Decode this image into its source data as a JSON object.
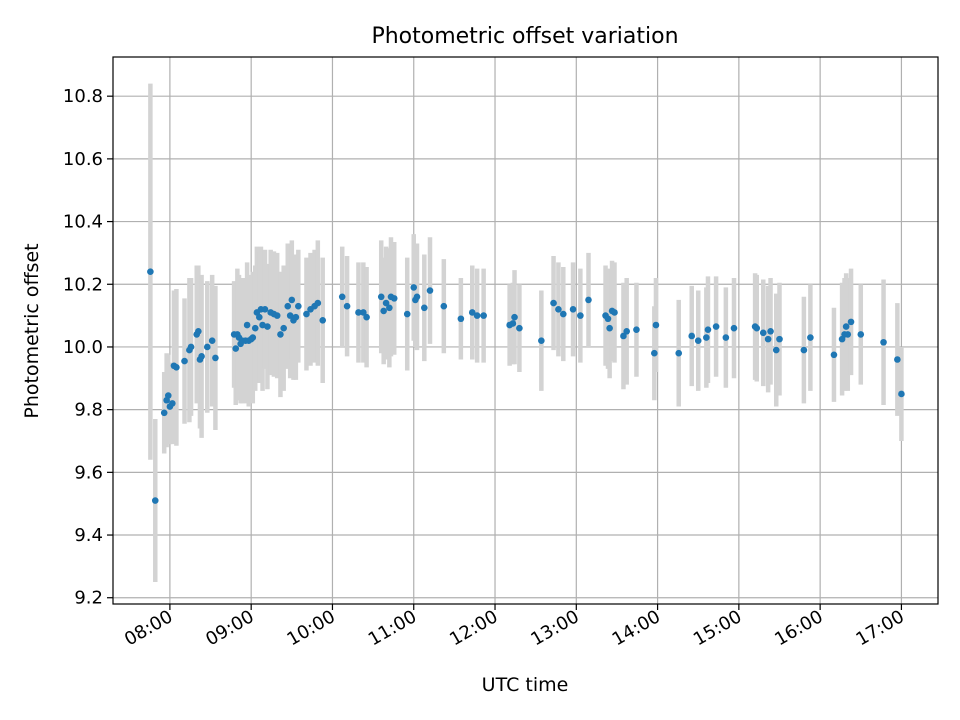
{
  "chart_data": {
    "type": "scatter",
    "title": "Photometric offset variation",
    "xlabel": "UTC time",
    "ylabel": "Photometric offset",
    "x_unit": "hours (UTC)",
    "xlim": [
      7.3,
      17.45
    ],
    "ylim": [
      9.18,
      10.925
    ],
    "x_ticks": [
      {
        "value": 8,
        "label": "08:00"
      },
      {
        "value": 9,
        "label": "09:00"
      },
      {
        "value": 10,
        "label": "10:00"
      },
      {
        "value": 11,
        "label": "11:00"
      },
      {
        "value": 12,
        "label": "12:00"
      },
      {
        "value": 13,
        "label": "13:00"
      },
      {
        "value": 14,
        "label": "14:00"
      },
      {
        "value": 15,
        "label": "15:00"
      },
      {
        "value": 16,
        "label": "16:00"
      },
      {
        "value": 17,
        "label": "17:00"
      }
    ],
    "y_ticks": [
      {
        "value": 9.2,
        "label": "9.2"
      },
      {
        "value": 9.4,
        "label": "9.4"
      },
      {
        "value": 9.6,
        "label": "9.6"
      },
      {
        "value": 9.8,
        "label": "9.8"
      },
      {
        "value": 10.0,
        "label": "10.0"
      },
      {
        "value": 10.2,
        "label": "10.2"
      },
      {
        "value": 10.4,
        "label": "10.4"
      },
      {
        "value": 10.6,
        "label": "10.6"
      },
      {
        "value": 10.8,
        "label": "10.8"
      }
    ],
    "grid": true,
    "point_color": "#1f77b4",
    "errorbar_color": "#d3d3d3",
    "points": [
      [
        7.76,
        10.24,
        0.6
      ],
      [
        7.82,
        9.51,
        0.26
      ],
      [
        7.93,
        9.79,
        0.13
      ],
      [
        7.96,
        9.83,
        0.15
      ],
      [
        7.98,
        9.845,
        0.13
      ],
      [
        8.0,
        9.81,
        0.12
      ],
      [
        8.03,
        9.82,
        0.13
      ],
      [
        8.05,
        9.94,
        0.24
      ],
      [
        8.08,
        9.935,
        0.25
      ],
      [
        8.18,
        9.955,
        0.2
      ],
      [
        8.24,
        9.99,
        0.23
      ],
      [
        8.26,
        10.0,
        0.22
      ],
      [
        8.33,
        10.04,
        0.22
      ],
      [
        8.35,
        10.05,
        0.21
      ],
      [
        8.37,
        9.96,
        0.22
      ],
      [
        8.39,
        9.97,
        0.26
      ],
      [
        8.46,
        10.0,
        0.21
      ],
      [
        8.52,
        10.02,
        0.21
      ],
      [
        8.56,
        9.965,
        0.23
      ],
      [
        8.79,
        10.04,
        0.17
      ],
      [
        8.81,
        9.995,
        0.18
      ],
      [
        8.83,
        10.04,
        0.21
      ],
      [
        8.85,
        10.03,
        0.2
      ],
      [
        8.87,
        10.01,
        0.19
      ],
      [
        8.89,
        10.02,
        0.2
      ],
      [
        8.93,
        10.02,
        0.2
      ],
      [
        8.95,
        10.07,
        0.2
      ],
      [
        8.97,
        10.02,
        0.21
      ],
      [
        9.0,
        10.025,
        0.2
      ],
      [
        9.02,
        10.03,
        0.21
      ],
      [
        9.05,
        10.06,
        0.2
      ],
      [
        9.07,
        10.11,
        0.21
      ],
      [
        9.1,
        10.095,
        0.21
      ],
      [
        9.12,
        10.12,
        0.2
      ],
      [
        9.14,
        10.07,
        0.21
      ],
      [
        9.17,
        10.12,
        0.19
      ],
      [
        9.2,
        10.065,
        0.2
      ],
      [
        9.24,
        10.11,
        0.2
      ],
      [
        9.28,
        10.105,
        0.2
      ],
      [
        9.32,
        10.1,
        0.2
      ],
      [
        9.36,
        10.04,
        0.2
      ],
      [
        9.4,
        10.06,
        0.2
      ],
      [
        9.45,
        10.13,
        0.2
      ],
      [
        9.48,
        10.1,
        0.2
      ],
      [
        9.5,
        10.15,
        0.19
      ],
      [
        9.52,
        10.085,
        0.19
      ],
      [
        9.55,
        10.095,
        0.2
      ],
      [
        9.58,
        10.13,
        0.18
      ],
      [
        9.68,
        10.105,
        0.18
      ],
      [
        9.73,
        10.12,
        0.18
      ],
      [
        9.78,
        10.13,
        0.18
      ],
      [
        9.82,
        10.14,
        0.2
      ],
      [
        9.88,
        10.085,
        0.2
      ],
      [
        10.12,
        10.16,
        0.16
      ],
      [
        10.18,
        10.13,
        0.16
      ],
      [
        10.32,
        10.11,
        0.16
      ],
      [
        10.38,
        10.11,
        0.16
      ],
      [
        10.42,
        10.095,
        0.16
      ],
      [
        10.6,
        10.16,
        0.18
      ],
      [
        10.63,
        10.115,
        0.17
      ],
      [
        10.66,
        10.14,
        0.18
      ],
      [
        10.7,
        10.125,
        0.19
      ],
      [
        10.72,
        10.16,
        0.19
      ],
      [
        10.76,
        10.155,
        0.18
      ],
      [
        10.92,
        10.105,
        0.18
      ],
      [
        11.0,
        10.19,
        0.17
      ],
      [
        11.02,
        10.15,
        0.15
      ],
      [
        11.04,
        10.16,
        0.17
      ],
      [
        11.13,
        10.125,
        0.17
      ],
      [
        11.2,
        10.18,
        0.17
      ],
      [
        11.37,
        10.13,
        0.15
      ],
      [
        11.58,
        10.09,
        0.13
      ],
      [
        11.72,
        10.11,
        0.15
      ],
      [
        11.78,
        10.1,
        0.15
      ],
      [
        11.86,
        10.1,
        0.15
      ],
      [
        12.18,
        10.07,
        0.13
      ],
      [
        12.22,
        10.075,
        0.13
      ],
      [
        12.24,
        10.095,
        0.15
      ],
      [
        12.3,
        10.06,
        0.14
      ],
      [
        12.57,
        10.02,
        0.16
      ],
      [
        12.72,
        10.14,
        0.15
      ],
      [
        12.78,
        10.12,
        0.15
      ],
      [
        12.84,
        10.105,
        0.15
      ],
      [
        12.96,
        10.12,
        0.15
      ],
      [
        13.05,
        10.1,
        0.15
      ],
      [
        13.15,
        10.15,
        0.15
      ],
      [
        13.36,
        10.1,
        0.16
      ],
      [
        13.39,
        10.09,
        0.16
      ],
      [
        13.41,
        10.06,
        0.16
      ],
      [
        13.44,
        10.115,
        0.16
      ],
      [
        13.47,
        10.11,
        0.16
      ],
      [
        13.58,
        10.035,
        0.17
      ],
      [
        13.62,
        10.05,
        0.17
      ],
      [
        13.74,
        10.055,
        0.15
      ],
      [
        13.96,
        9.98,
        0.15
      ],
      [
        13.98,
        10.07,
        0.15
      ],
      [
        14.26,
        9.98,
        0.17
      ],
      [
        14.42,
        10.035,
        0.16
      ],
      [
        14.5,
        10.02,
        0.16
      ],
      [
        14.6,
        10.03,
        0.16
      ],
      [
        14.62,
        10.055,
        0.17
      ],
      [
        14.72,
        10.065,
        0.16
      ],
      [
        14.84,
        10.03,
        0.16
      ],
      [
        14.94,
        10.06,
        0.16
      ],
      [
        15.2,
        10.065,
        0.17
      ],
      [
        15.22,
        10.06,
        0.17
      ],
      [
        15.3,
        10.045,
        0.17
      ],
      [
        15.36,
        10.025,
        0.17
      ],
      [
        15.39,
        10.05,
        0.17
      ],
      [
        15.46,
        9.99,
        0.18
      ],
      [
        15.5,
        10.025,
        0.18
      ],
      [
        15.8,
        9.99,
        0.17
      ],
      [
        15.88,
        10.03,
        0.17
      ],
      [
        16.17,
        9.975,
        0.15
      ],
      [
        16.27,
        10.025,
        0.18
      ],
      [
        16.3,
        10.04,
        0.18
      ],
      [
        16.32,
        10.065,
        0.17
      ],
      [
        16.34,
        10.04,
        0.18
      ],
      [
        16.38,
        10.08,
        0.17
      ],
      [
        16.5,
        10.04,
        0.16
      ],
      [
        16.78,
        10.015,
        0.2
      ],
      [
        16.95,
        9.96,
        0.18
      ],
      [
        17.0,
        9.85,
        0.15
      ]
    ]
  }
}
